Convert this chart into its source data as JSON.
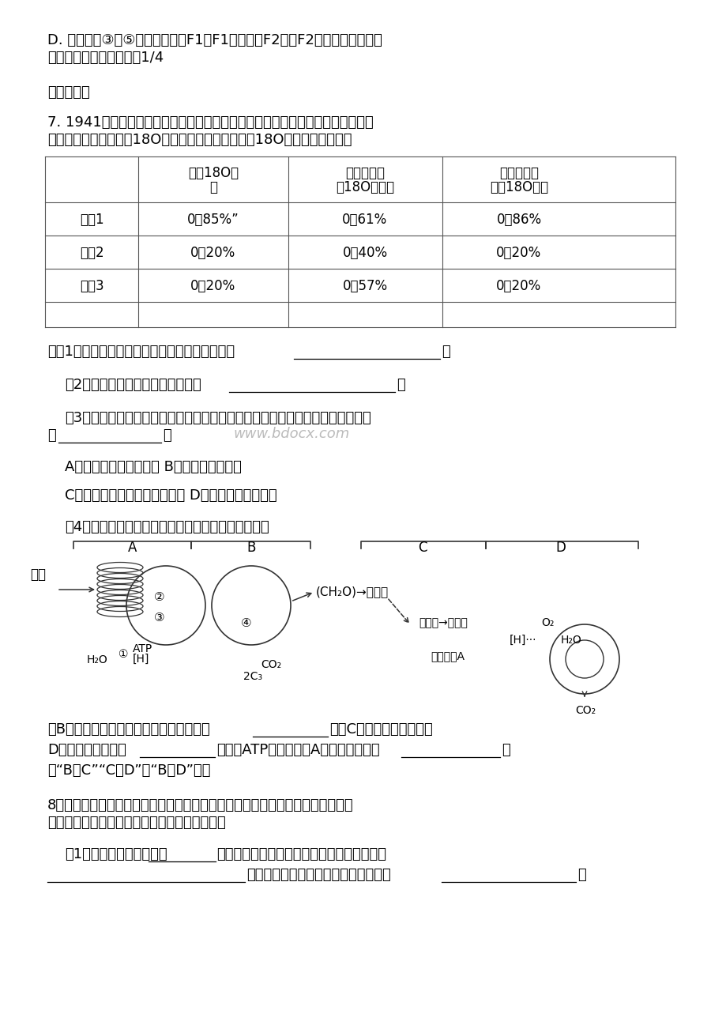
{
  "background": "#ffffff",
  "page_width": 9.2,
  "page_height": 13.02,
  "line1": "D. 选择品系③和⑤作亲本杂交得F1，F1再自交得F2，则F2表现为长节高茎的",
  "line2": "植株中，纯合子的概率为1/4",
  "section_title": "二、综合题",
  "q7_intro1": "7. 1941年鲁宾和卡门用小球藻做了三组实验，每一组提供给小球藻的水和碳酸氢",
  "q7_intro2": "盐中都含有比例不等的18O，分析每组产生的氧气中18O比例，结果如下：",
  "col1_h1": "水中18O比",
  "col1_h2": "例",
  "col2_h1": "碳酸氢盐中",
  "col2_h2": "的18O的比例",
  "col3_h1": "产生的氧气",
  "col3_h2": "中的18O比例",
  "row1_label": "实验1",
  "row1_c1": "0．85%”",
  "row1_c2": "0．61%",
  "row1_c3": "0．86%",
  "row2_label": "实验2",
  "row2_c1": "0．20%",
  "row2_c2": "0．40%",
  "row2_c3": "0．20%",
  "row3_label": "实验3",
  "row3_c1": "0．20%",
  "row3_c2": "0．57%",
  "row3_c3": "0．20%",
  "q7_q1": "对（1）该实验中碳酸氢盐的作用是为小球藻提供",
  "q7_q2": "（2）从实验结果可以得出的结论是",
  "q7_q3_1": "（3）该实验成功的关键是运用了同位素标记法，下列实验中也运用了该项技术的",
  "q7_q3_2": "有",
  "q7_optAB": "A．噬菌体侵染细菌实验 B．促胰液素的发现",
  "q7_optCD": "C．研究分泌蛋白的合成与分泌 D．人鼠细胞融合实验",
  "q7_q4": "（4）如图是小球藻的光合作用和呼吸作用的示意图。",
  "diag_label_A": "A",
  "diag_label_B": "B",
  "diag_label_C": "C",
  "diag_label_D": "D",
  "diag_guangneng": "光能",
  "diag_ch2o": "(CH₂O)→葡萄糖",
  "diag_atp": "ATP",
  "diag_h": "[H]",
  "diag_h2o_left": "H₂O",
  "diag_co2_mid": "CO₂",
  "diag_2c3": "2C₃",
  "diag_bingtong1": "丙酮酸",
  "diag_bingtong2": "丙酮酸",
  "diag_o2": "O₂",
  "diag_h_right": "[H]",
  "diag_h2o_right": "H₂O",
  "diag_yixian": "乙酰辅醂A",
  "diag_co2_bottom": "CO₂",
  "q7_b1": "若B代表一种反应过程，则其发生的场所是",
  "q7_b1_mid": "。若C代表细胞质基质，则",
  "q7_b2": "D代表的细胞结构是",
  "q7_b2_mid": "。图中ATP合成发生在A过程，还发生在",
  "q7_b2_end": "（",
  "q7_b3": "填“B和C”“C和D”或“B和D”）。",
  "q8_intro1": "8．病原体感染人体后会引起机体产生淡巴因子和抗原一抗体复合物，这两种物质",
  "q8_intro2": "可能成为致热源引起机体发热。回答下列问题：",
  "q8_q1_1": "（1）淡巴因子是抗原刺激",
  "q8_q1_2": "细胞后产生的。其在体液免疫过程中的作用是",
  "q8_q1_3": "。抗原和抗体结合后，可抑制病原体的",
  "q8_q1_4": "。",
  "watermark": "www.bdocx.com"
}
